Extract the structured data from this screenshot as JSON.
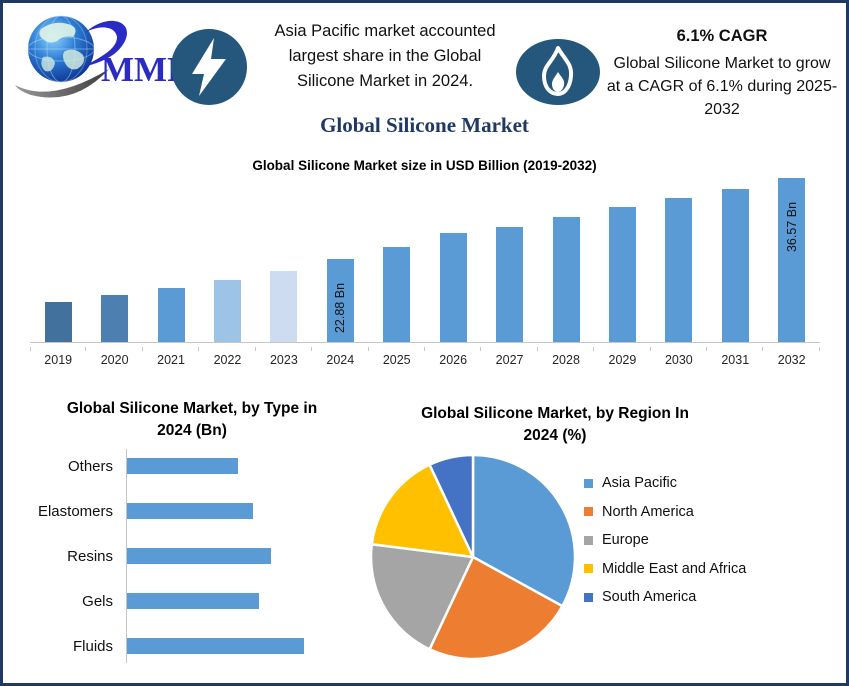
{
  "header": {
    "logo_text": "MMR",
    "headline_lines": [
      "Asia Pacific market accounted",
      "largest share in the Global",
      "Silicone Market in 2024."
    ],
    "cagr_title": "6.1% CAGR",
    "cagr_lines": [
      "Global Silicone Market to grow",
      "at a CAGR of 6.1% during 2025-",
      "2032"
    ]
  },
  "title": "Global Silicone Market",
  "colors": {
    "border_navy": "#1F3864",
    "icon_circle": "#25567C",
    "logo_blue": "#2A2AC4",
    "bar_blue": "#5B9BD5",
    "axis_gray": "#C6C6C6"
  },
  "chart_data": [
    {
      "id": "market-size",
      "type": "bar",
      "title": "Global Silicone Market size in USD Billion (2019-2032)",
      "categories": [
        "2019",
        "2020",
        "2021",
        "2022",
        "2023",
        "2024",
        "2025",
        "2026",
        "2027",
        "2028",
        "2029",
        "2030",
        "2031",
        "2032"
      ],
      "values": [
        15.5,
        16.7,
        17.9,
        19.3,
        20.8,
        22.88,
        24.9,
        27.3,
        28.3,
        30.0,
        31.7,
        33.3,
        34.8,
        36.57
      ],
      "data_labels": [
        "",
        "",
        "",
        "",
        "",
        "22.88 Bn",
        "",
        "",
        "",
        "",
        "",
        "",
        "",
        "36.57 Bn"
      ],
      "bar_colors": [
        "#41719C",
        "#4D80B0",
        "#5B9BD5",
        "#9DC3E6",
        "#CDDCF0",
        "#5B9BD5",
        "#5B9BD5",
        "#5B9BD5",
        "#5B9BD5",
        "#5B9BD5",
        "#5B9BD5",
        "#5B9BD5",
        "#5B9BD5",
        "#5B9BD5"
      ],
      "unit": "USD Bn",
      "ylim": [
        8.7,
        38.5
      ],
      "grid": false,
      "legend": "none"
    },
    {
      "id": "by-type",
      "type": "bar",
      "orientation": "horizontal",
      "title": "Global Silicone Market, by Type in 2024 (Bn)",
      "title_lines": [
        "Global Silicone Market, by Type in",
        "2024 (Bn)"
      ],
      "categories": [
        "Others",
        "Elastomers",
        "Resins",
        "Gels",
        "Fluids"
      ],
      "values": [
        3.7,
        4.2,
        4.8,
        4.4,
        5.9
      ],
      "bar_color": "#5B9BD5",
      "unit": "Bn",
      "xlim": [
        0,
        7
      ],
      "grid": false,
      "legend": "none"
    },
    {
      "id": "by-region",
      "type": "pie",
      "title": "Global Silicone Market, by Region In 2024 (%)",
      "title_lines": [
        "Global Silicone Market, by Region In",
        "2024 (%)"
      ],
      "labels": [
        "Asia Pacific",
        "North America",
        "Europe",
        "Middle East and Africa",
        "South America"
      ],
      "values": [
        33,
        24,
        20,
        16,
        7
      ],
      "colors": [
        "#5B9BD5",
        "#ED7D31",
        "#A5A5A5",
        "#FFC000",
        "#4472C4"
      ],
      "start_angle_deg": 0,
      "legend_position": "right",
      "unit": "%"
    }
  ]
}
